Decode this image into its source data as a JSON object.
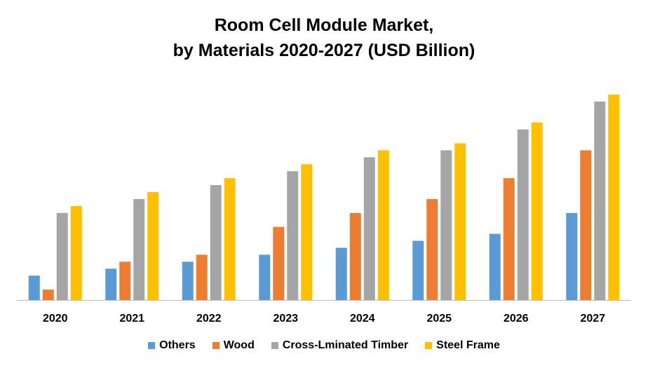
{
  "chart_data": {
    "type": "bar",
    "title": "Room Cell Module Market,",
    "subtitle": "by Materials 2020-2027 (USD Billion)",
    "categories": [
      "2020",
      "2021",
      "2022",
      "2023",
      "2024",
      "2025",
      "2026",
      "2027"
    ],
    "series": [
      {
        "name": "Others",
        "color": "#5b9bd5",
        "values": [
          3.5,
          4.5,
          5.5,
          6.5,
          7.5,
          8.5,
          9.5,
          12.5
        ]
      },
      {
        "name": "Wood",
        "color": "#ed7d31",
        "values": [
          1.5,
          5.5,
          6.5,
          10.5,
          12.5,
          14.5,
          17.5,
          21.5
        ]
      },
      {
        "name": "Cross-Lminated Timber",
        "color": "#a5a5a5",
        "values": [
          12.5,
          14.5,
          16.5,
          18.5,
          20.5,
          21.5,
          24.5,
          28.5
        ]
      },
      {
        "name": "Steel Frame",
        "color": "#ffc000",
        "values": [
          13.5,
          15.5,
          17.5,
          19.5,
          21.5,
          22.5,
          25.5,
          29.5
        ]
      }
    ],
    "ylim": [
      0,
      30
    ],
    "grid": false,
    "legend": "bottom"
  }
}
